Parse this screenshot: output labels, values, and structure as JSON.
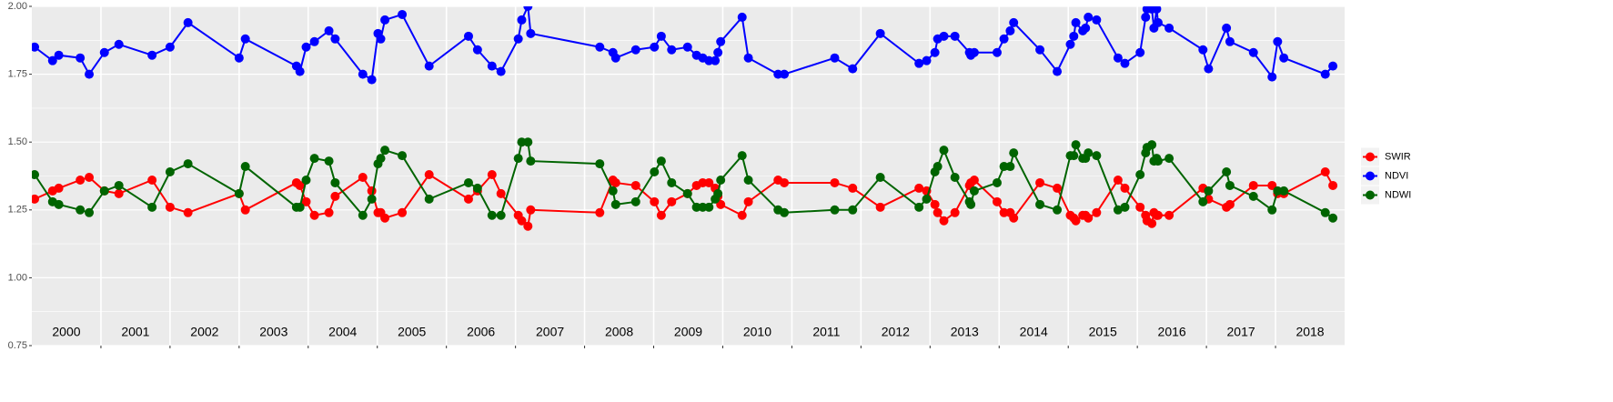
{
  "chart_data": {
    "type": "line",
    "x": [
      2000.04,
      2000.3,
      2000.39,
      2000.7,
      2000.83,
      2001.05,
      2001.26,
      2001.74,
      2002.0,
      2002.26,
      2003.0,
      2003.09,
      2003.83,
      2003.88,
      2003.97,
      2004.09,
      2004.3,
      2004.39,
      2004.79,
      2004.92,
      2005.01,
      2005.05,
      2005.11,
      2005.36,
      2005.75,
      2006.32,
      2006.45,
      2006.66,
      2006.79,
      2007.04,
      2007.09,
      2007.18,
      2007.22,
      2008.22,
      2008.41,
      2008.45,
      2008.74,
      2009.01,
      2009.11,
      2009.26,
      2009.49,
      2009.62,
      2009.71,
      2009.8,
      2009.89,
      2009.93,
      2009.97,
      2010.28,
      2010.37,
      2010.8,
      2010.89,
      2011.62,
      2011.88,
      2012.28,
      2012.84,
      2012.95,
      2013.07,
      2013.11,
      2013.2,
      2013.36,
      2013.57,
      2013.59,
      2013.64,
      2013.97,
      2014.07,
      2014.16,
      2014.21,
      2014.59,
      2014.84,
      2015.03,
      2015.08,
      2015.11,
      2015.21,
      2015.25,
      2015.29,
      2015.41,
      2015.72,
      2015.82,
      2016.04,
      2016.12,
      2016.14,
      2016.21,
      2016.24,
      2016.28,
      2016.3,
      2016.46,
      2016.95,
      2017.03,
      2017.29,
      2017.34,
      2017.68,
      2017.95,
      2018.03,
      2018.12,
      2018.72,
      2018.83
    ],
    "series": [
      {
        "name": "SWIR",
        "color": "#ff0000",
        "values": [
          1.29,
          1.32,
          1.33,
          1.36,
          1.37,
          1.32,
          1.31,
          1.36,
          1.26,
          1.24,
          1.31,
          1.25,
          1.35,
          1.34,
          1.28,
          1.23,
          1.24,
          1.3,
          1.37,
          1.32,
          1.24,
          1.24,
          1.22,
          1.24,
          1.38,
          1.29,
          1.32,
          1.38,
          1.31,
          1.23,
          1.21,
          1.19,
          1.25,
          1.24,
          1.36,
          1.35,
          1.34,
          1.28,
          1.23,
          1.28,
          1.31,
          1.34,
          1.35,
          1.35,
          1.33,
          1.3,
          1.27,
          1.23,
          1.28,
          1.36,
          1.35,
          1.35,
          1.33,
          1.26,
          1.33,
          1.32,
          1.27,
          1.24,
          1.21,
          1.24,
          1.34,
          1.35,
          1.36,
          1.28,
          1.24,
          1.24,
          1.22,
          1.35,
          1.33,
          1.23,
          1.22,
          1.21,
          1.23,
          1.23,
          1.22,
          1.24,
          1.36,
          1.33,
          1.26,
          1.23,
          1.21,
          1.2,
          1.24,
          1.23,
          1.23,
          1.23,
          1.33,
          1.29,
          1.26,
          1.27,
          1.34,
          1.34,
          1.31,
          1.31,
          1.39,
          1.34
        ]
      },
      {
        "name": "NDVI",
        "color": "#0000ff",
        "values": [
          1.85,
          1.8,
          1.82,
          1.81,
          1.75,
          1.83,
          1.86,
          1.82,
          1.85,
          1.94,
          1.81,
          1.88,
          1.78,
          1.76,
          1.85,
          1.87,
          1.91,
          1.88,
          1.75,
          1.73,
          1.9,
          1.88,
          1.95,
          1.97,
          1.78,
          1.89,
          1.84,
          1.78,
          1.76,
          1.88,
          1.95,
          2.0,
          1.9,
          1.85,
          1.83,
          1.81,
          1.84,
          1.85,
          1.89,
          1.84,
          1.85,
          1.82,
          1.81,
          1.8,
          1.8,
          1.83,
          1.87,
          1.96,
          1.81,
          1.75,
          1.75,
          1.81,
          1.77,
          1.9,
          1.79,
          1.8,
          1.83,
          1.88,
          1.89,
          1.89,
          1.83,
          1.82,
          1.83,
          1.83,
          1.88,
          1.91,
          1.94,
          1.84,
          1.76,
          1.86,
          1.89,
          1.94,
          1.91,
          1.92,
          1.96,
          1.95,
          1.81,
          1.79,
          1.83,
          1.96,
          1.99,
          1.99,
          1.92,
          1.99,
          1.94,
          1.92,
          1.84,
          1.77,
          1.92,
          1.87,
          1.83,
          1.74,
          1.87,
          1.81,
          1.75,
          1.78
        ]
      },
      {
        "name": "NDWI",
        "color": "#006400",
        "values": [
          1.38,
          1.28,
          1.27,
          1.25,
          1.24,
          1.32,
          1.34,
          1.26,
          1.39,
          1.42,
          1.31,
          1.41,
          1.26,
          1.26,
          1.36,
          1.44,
          1.43,
          1.35,
          1.23,
          1.29,
          1.42,
          1.44,
          1.47,
          1.45,
          1.29,
          1.35,
          1.33,
          1.23,
          1.23,
          1.44,
          1.5,
          1.5,
          1.43,
          1.42,
          1.32,
          1.27,
          1.28,
          1.39,
          1.43,
          1.35,
          1.31,
          1.26,
          1.26,
          1.26,
          1.29,
          1.31,
          1.36,
          1.45,
          1.36,
          1.25,
          1.24,
          1.25,
          1.25,
          1.37,
          1.26,
          1.29,
          1.39,
          1.41,
          1.47,
          1.37,
          1.28,
          1.27,
          1.32,
          1.35,
          1.41,
          1.41,
          1.46,
          1.27,
          1.25,
          1.45,
          1.45,
          1.49,
          1.44,
          1.44,
          1.46,
          1.45,
          1.25,
          1.26,
          1.38,
          1.46,
          1.48,
          1.49,
          1.43,
          1.44,
          1.43,
          1.44,
          1.28,
          1.32,
          1.39,
          1.34,
          1.3,
          1.25,
          1.32,
          1.32,
          1.24,
          1.22
        ]
      }
    ],
    "xlim": [
      2000,
      2019
    ],
    "xticks": [
      {
        "value": 2000.5,
        "label": "2000"
      },
      {
        "value": 2001.5,
        "label": "2001"
      },
      {
        "value": 2002.5,
        "label": "2002"
      },
      {
        "value": 2003.5,
        "label": "2003"
      },
      {
        "value": 2004.5,
        "label": "2004"
      },
      {
        "value": 2005.5,
        "label": "2005"
      },
      {
        "value": 2006.5,
        "label": "2006"
      },
      {
        "value": 2007.5,
        "label": "2007"
      },
      {
        "value": 2008.5,
        "label": "2008"
      },
      {
        "value": 2009.5,
        "label": "2009"
      },
      {
        "value": 2010.5,
        "label": "2010"
      },
      {
        "value": 2011.5,
        "label": "2011"
      },
      {
        "value": 2012.5,
        "label": "2012"
      },
      {
        "value": 2013.5,
        "label": "2013"
      },
      {
        "value": 2014.5,
        "label": "2014"
      },
      {
        "value": 2015.5,
        "label": "2015"
      },
      {
        "value": 2016.5,
        "label": "2016"
      },
      {
        "value": 2017.5,
        "label": "2017"
      },
      {
        "value": 2018.5,
        "label": "2018"
      }
    ],
    "x_gridlines": [
      2001,
      2002,
      2003,
      2004,
      2005,
      2006,
      2007,
      2008,
      2009,
      2010,
      2011,
      2012,
      2013,
      2014,
      2015,
      2016,
      2017,
      2018
    ],
    "ylim": [
      0.75,
      2.0
    ],
    "yticks": [
      0.75,
      {
        "value": 1,
        "label": "1.00"
      },
      1.25,
      {
        "value": 1.5,
        "label": "1.50"
      },
      1.75,
      {
        "value": 2,
        "label": "2.00"
      }
    ],
    "minor_yticks": [
      0.875,
      1.125,
      1.375,
      1.625,
      1.875
    ],
    "grid": true,
    "legend": "right"
  }
}
